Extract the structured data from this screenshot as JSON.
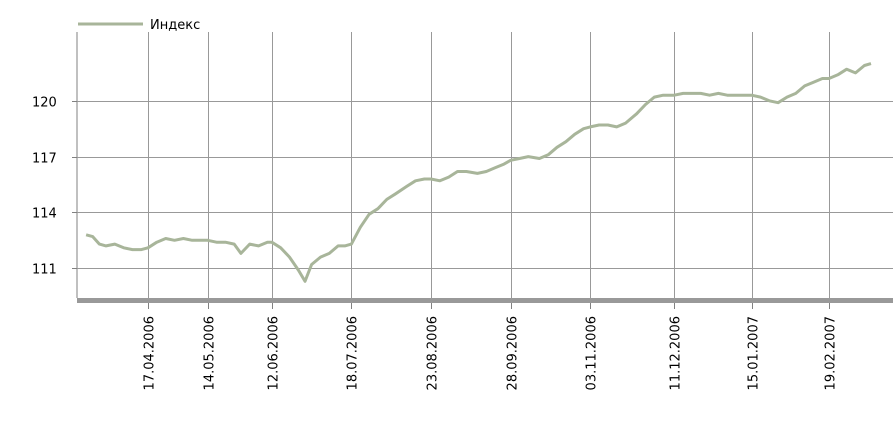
{
  "chart_data": {
    "type": "line",
    "title": "",
    "xlabel": "",
    "ylabel": "",
    "legend": {
      "position": "top-left",
      "entries": [
        "Индекс"
      ]
    },
    "grid": true,
    "ylim": [
      109.4,
      123.7
    ],
    "y_ticks": [
      111,
      114,
      117,
      120
    ],
    "x_ticks": [
      "17.04.2006",
      "14.05.2006",
      "12.06.2006",
      "18.07.2006",
      "23.08.2006",
      "28.09.2006",
      "03.11.2006",
      "11.12.2006",
      "15.01.2007",
      "19.02.2007"
    ],
    "series": [
      {
        "name": "Индекс",
        "color": "#a8b59a",
        "x": [
          "20.03.2006",
          "23.03.2006",
          "26.03.2006",
          "29.03.2006",
          "02.04.2006",
          "06.04.2006",
          "10.04.2006",
          "14.04.2006",
          "17.04.2006",
          "21.04.2006",
          "25.04.2006",
          "29.04.2006",
          "03.05.2006",
          "07.05.2006",
          "11.05.2006",
          "14.05.2006",
          "18.05.2006",
          "22.05.2006",
          "26.05.2006",
          "29.05.2006",
          "02.06.2006",
          "06.06.2006",
          "10.06.2006",
          "12.06.2006",
          "16.06.2006",
          "20.06.2006",
          "24.06.2006",
          "27.06.2006",
          "30.06.2006",
          "04.07.2006",
          "08.07.2006",
          "12.07.2006",
          "15.07.2006",
          "18.07.2006",
          "22.07.2006",
          "26.07.2006",
          "30.07.2006",
          "03.08.2006",
          "07.08.2006",
          "12.08.2006",
          "16.08.2006",
          "20.08.2006",
          "23.08.2006",
          "27.08.2006",
          "31.08.2006",
          "04.09.2006",
          "08.09.2006",
          "13.09.2006",
          "17.09.2006",
          "21.09.2006",
          "25.09.2006",
          "28.09.2006",
          "02.10.2006",
          "06.10.2006",
          "11.10.2006",
          "15.10.2006",
          "19.10.2006",
          "23.10.2006",
          "27.10.2006",
          "31.10.2006",
          "03.11.2006",
          "07.11.2006",
          "11.11.2006",
          "15.11.2006",
          "19.11.2006",
          "24.11.2006",
          "28.11.2006",
          "02.12.2006",
          "06.12.2006",
          "11.12.2006",
          "15.12.2006",
          "19.12.2006",
          "23.12.2006",
          "27.12.2006",
          "31.12.2006",
          "04.01.2007",
          "08.01.2007",
          "12.01.2007",
          "15.01.2007",
          "19.01.2007",
          "23.01.2007",
          "27.01.2007",
          "31.01.2007",
          "04.02.2007",
          "08.02.2007",
          "12.02.2007",
          "16.02.2007",
          "19.02.2007",
          "23.02.2007",
          "27.02.2007",
          "03.03.2007",
          "07.03.2007",
          "10.03.2007"
        ],
        "values": [
          112.8,
          112.7,
          112.3,
          112.2,
          112.3,
          112.1,
          112.0,
          112.0,
          112.1,
          112.4,
          112.6,
          112.5,
          112.6,
          112.5,
          112.5,
          112.5,
          112.4,
          112.4,
          112.3,
          111.8,
          112.3,
          112.2,
          112.4,
          112.4,
          112.1,
          111.6,
          110.9,
          110.3,
          111.2,
          111.6,
          111.8,
          112.2,
          112.2,
          112.3,
          113.2,
          113.9,
          114.2,
          114.7,
          115.0,
          115.4,
          115.7,
          115.8,
          115.8,
          115.7,
          115.9,
          116.2,
          116.2,
          116.1,
          116.2,
          116.4,
          116.6,
          116.8,
          116.9,
          117.0,
          116.9,
          117.1,
          117.5,
          117.8,
          118.2,
          118.5,
          118.6,
          118.7,
          118.7,
          118.6,
          118.8,
          119.3,
          119.8,
          120.2,
          120.3,
          120.3,
          120.4,
          120.4,
          120.4,
          120.3,
          120.4,
          120.3,
          120.3,
          120.3,
          120.3,
          120.2,
          120.0,
          119.9,
          120.2,
          120.4,
          120.8,
          121.0,
          121.2,
          121.2,
          121.4,
          121.7,
          121.5,
          121.9,
          122.0
        ]
      }
    ]
  }
}
